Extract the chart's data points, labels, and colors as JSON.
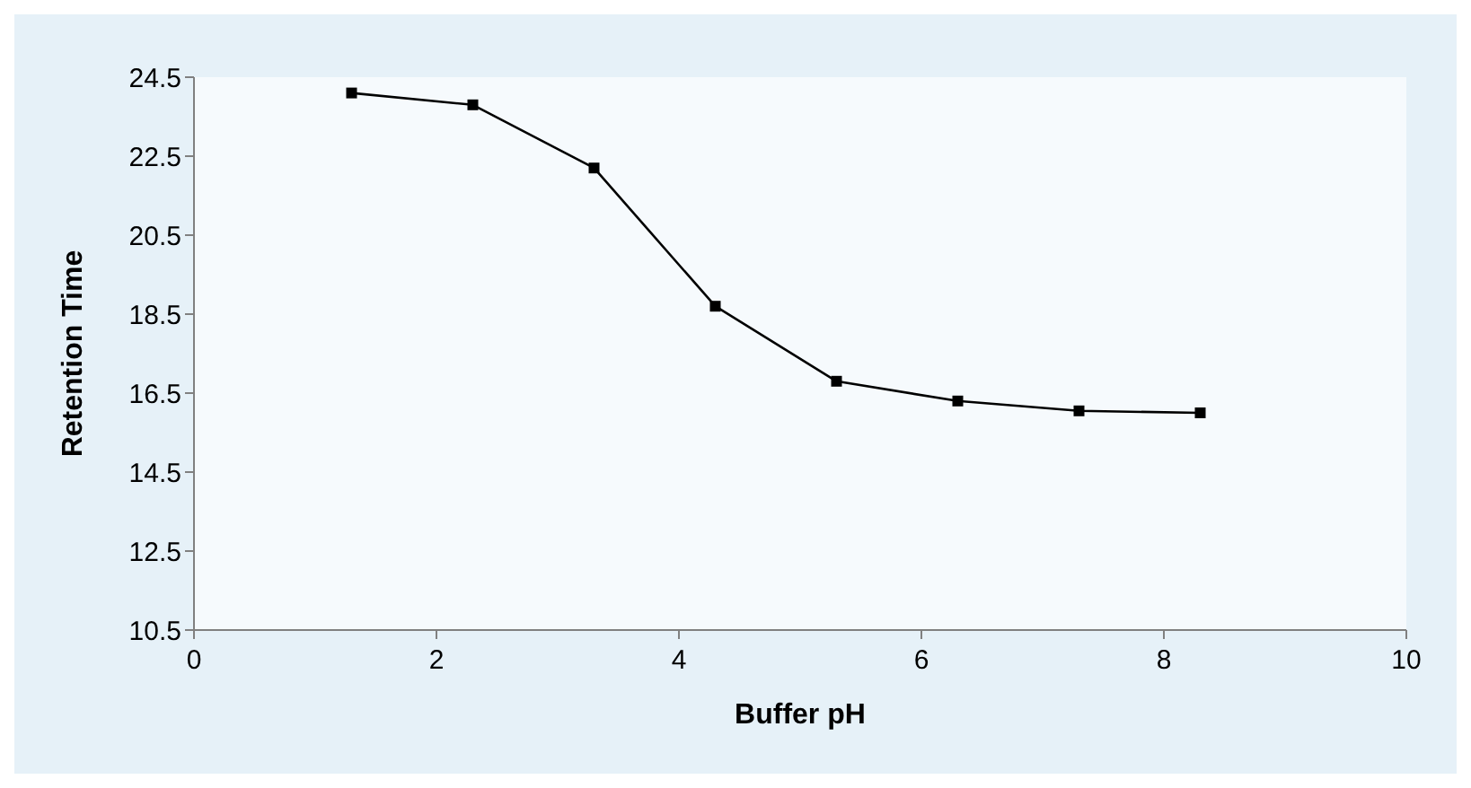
{
  "chart_data": {
    "type": "line",
    "xlabel": "Buffer pH",
    "ylabel": "Retention Time",
    "x": [
      1.3,
      2.3,
      3.3,
      4.3,
      5.3,
      6.3,
      7.3,
      8.3
    ],
    "series": [
      {
        "color": "#000000",
        "values": [
          24.1,
          23.8,
          22.2,
          18.7,
          16.8,
          16.3,
          16.05,
          16.0
        ]
      }
    ],
    "xlim": [
      0,
      10
    ],
    "xticks": [
      0,
      2,
      4,
      6,
      8,
      10
    ],
    "ylim": [
      10.5,
      24.5
    ],
    "yticks": [
      10.5,
      12.5,
      14.5,
      16.5,
      18.5,
      20.5,
      22.5,
      24.5
    ],
    "grid": false,
    "legend": false,
    "marker": "square",
    "line_style": "solid"
  }
}
